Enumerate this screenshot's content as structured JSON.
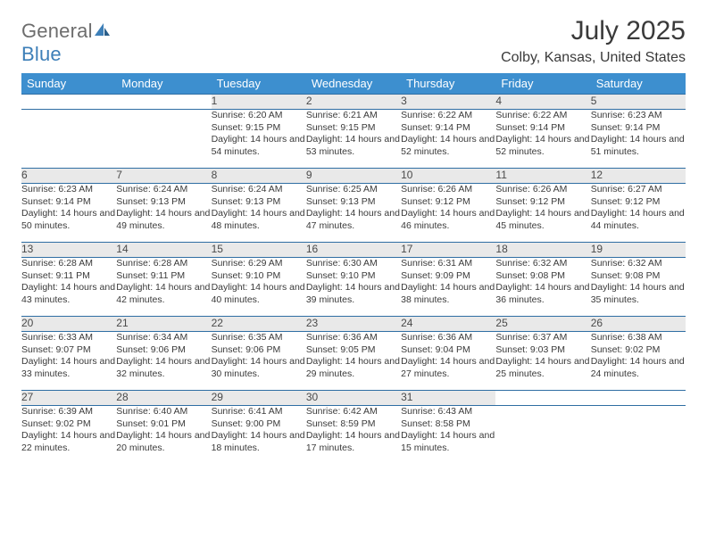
{
  "brand": {
    "name_gray": "General",
    "name_blue": "Blue"
  },
  "title": "July 2025",
  "location": "Colby, Kansas, United States",
  "colors": {
    "header_bg": "#3d8fcf",
    "header_text": "#ffffff",
    "daynum_bg": "#e9e9e9",
    "row_divider": "#2f6ea3",
    "text": "#3a3a3a",
    "logo_gray": "#6d6d6d",
    "logo_blue": "#3d7fb8",
    "page_bg": "#ffffff"
  },
  "typography": {
    "title_fontsize": 30,
    "location_fontsize": 16,
    "weekday_fontsize": 13,
    "daynum_fontsize": 12,
    "cell_fontsize": 10.5
  },
  "weekdays": [
    "Sunday",
    "Monday",
    "Tuesday",
    "Wednesday",
    "Thursday",
    "Friday",
    "Saturday"
  ],
  "weeks": [
    [
      null,
      null,
      {
        "n": "1",
        "sunrise": "6:20 AM",
        "sunset": "9:15 PM",
        "daylight": "14 hours and 54 minutes."
      },
      {
        "n": "2",
        "sunrise": "6:21 AM",
        "sunset": "9:15 PM",
        "daylight": "14 hours and 53 minutes."
      },
      {
        "n": "3",
        "sunrise": "6:22 AM",
        "sunset": "9:14 PM",
        "daylight": "14 hours and 52 minutes."
      },
      {
        "n": "4",
        "sunrise": "6:22 AM",
        "sunset": "9:14 PM",
        "daylight": "14 hours and 52 minutes."
      },
      {
        "n": "5",
        "sunrise": "6:23 AM",
        "sunset": "9:14 PM",
        "daylight": "14 hours and 51 minutes."
      }
    ],
    [
      {
        "n": "6",
        "sunrise": "6:23 AM",
        "sunset": "9:14 PM",
        "daylight": "14 hours and 50 minutes."
      },
      {
        "n": "7",
        "sunrise": "6:24 AM",
        "sunset": "9:13 PM",
        "daylight": "14 hours and 49 minutes."
      },
      {
        "n": "8",
        "sunrise": "6:24 AM",
        "sunset": "9:13 PM",
        "daylight": "14 hours and 48 minutes."
      },
      {
        "n": "9",
        "sunrise": "6:25 AM",
        "sunset": "9:13 PM",
        "daylight": "14 hours and 47 minutes."
      },
      {
        "n": "10",
        "sunrise": "6:26 AM",
        "sunset": "9:12 PM",
        "daylight": "14 hours and 46 minutes."
      },
      {
        "n": "11",
        "sunrise": "6:26 AM",
        "sunset": "9:12 PM",
        "daylight": "14 hours and 45 minutes."
      },
      {
        "n": "12",
        "sunrise": "6:27 AM",
        "sunset": "9:12 PM",
        "daylight": "14 hours and 44 minutes."
      }
    ],
    [
      {
        "n": "13",
        "sunrise": "6:28 AM",
        "sunset": "9:11 PM",
        "daylight": "14 hours and 43 minutes."
      },
      {
        "n": "14",
        "sunrise": "6:28 AM",
        "sunset": "9:11 PM",
        "daylight": "14 hours and 42 minutes."
      },
      {
        "n": "15",
        "sunrise": "6:29 AM",
        "sunset": "9:10 PM",
        "daylight": "14 hours and 40 minutes."
      },
      {
        "n": "16",
        "sunrise": "6:30 AM",
        "sunset": "9:10 PM",
        "daylight": "14 hours and 39 minutes."
      },
      {
        "n": "17",
        "sunrise": "6:31 AM",
        "sunset": "9:09 PM",
        "daylight": "14 hours and 38 minutes."
      },
      {
        "n": "18",
        "sunrise": "6:32 AM",
        "sunset": "9:08 PM",
        "daylight": "14 hours and 36 minutes."
      },
      {
        "n": "19",
        "sunrise": "6:32 AM",
        "sunset": "9:08 PM",
        "daylight": "14 hours and 35 minutes."
      }
    ],
    [
      {
        "n": "20",
        "sunrise": "6:33 AM",
        "sunset": "9:07 PM",
        "daylight": "14 hours and 33 minutes."
      },
      {
        "n": "21",
        "sunrise": "6:34 AM",
        "sunset": "9:06 PM",
        "daylight": "14 hours and 32 minutes."
      },
      {
        "n": "22",
        "sunrise": "6:35 AM",
        "sunset": "9:06 PM",
        "daylight": "14 hours and 30 minutes."
      },
      {
        "n": "23",
        "sunrise": "6:36 AM",
        "sunset": "9:05 PM",
        "daylight": "14 hours and 29 minutes."
      },
      {
        "n": "24",
        "sunrise": "6:36 AM",
        "sunset": "9:04 PM",
        "daylight": "14 hours and 27 minutes."
      },
      {
        "n": "25",
        "sunrise": "6:37 AM",
        "sunset": "9:03 PM",
        "daylight": "14 hours and 25 minutes."
      },
      {
        "n": "26",
        "sunrise": "6:38 AM",
        "sunset": "9:02 PM",
        "daylight": "14 hours and 24 minutes."
      }
    ],
    [
      {
        "n": "27",
        "sunrise": "6:39 AM",
        "sunset": "9:02 PM",
        "daylight": "14 hours and 22 minutes."
      },
      {
        "n": "28",
        "sunrise": "6:40 AM",
        "sunset": "9:01 PM",
        "daylight": "14 hours and 20 minutes."
      },
      {
        "n": "29",
        "sunrise": "6:41 AM",
        "sunset": "9:00 PM",
        "daylight": "14 hours and 18 minutes."
      },
      {
        "n": "30",
        "sunrise": "6:42 AM",
        "sunset": "8:59 PM",
        "daylight": "14 hours and 17 minutes."
      },
      {
        "n": "31",
        "sunrise": "6:43 AM",
        "sunset": "8:58 PM",
        "daylight": "14 hours and 15 minutes."
      },
      null,
      null
    ]
  ],
  "labels": {
    "sunrise": "Sunrise: ",
    "sunset": "Sunset: ",
    "daylight": "Daylight: "
  }
}
